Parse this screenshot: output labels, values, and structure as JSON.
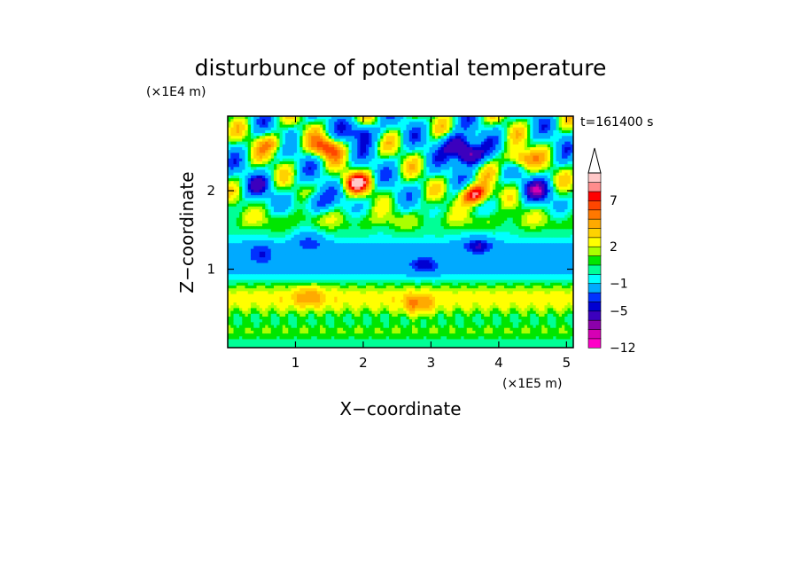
{
  "chart_data": {
    "type": "heatmap",
    "title": "disturbunce of potential temperature",
    "xlabel": "X−coordinate",
    "ylabel": "Z−coordinate",
    "x_unit": "(×1E5 m)",
    "y_unit": "(×1E4 m)",
    "time_label": "t=161400 s",
    "xlim": [
      0,
      5.1
    ],
    "ylim": [
      0,
      2.95
    ],
    "x_ticks": [
      1,
      2,
      3,
      4,
      5
    ],
    "y_ticks": [
      1,
      2
    ],
    "x_tick_labels": [
      "1",
      "2",
      "3",
      "4",
      "5"
    ],
    "y_tick_labels": [
      "1",
      "2"
    ],
    "colorbar": {
      "levels": [
        -12,
        -5,
        -1,
        2,
        7
      ],
      "level_labels": [
        "−12",
        "−5",
        "−1",
        "2",
        "7"
      ],
      "colors": [
        "#ff00c8",
        "#d600b4",
        "#8c00aa",
        "#3c00be",
        "#0000d2",
        "#0032ff",
        "#00aaff",
        "#00ffff",
        "#00ff96",
        "#00e600",
        "#aaff00",
        "#ffff00",
        "#ffd200",
        "#ffaa00",
        "#ff7800",
        "#ff4600",
        "#ff0000",
        "#ff8c8c",
        "#ffc8c8"
      ],
      "extend": "max"
    },
    "field_features": [
      {
        "x": 3.65,
        "z": 1.95,
        "value": 9
      },
      {
        "x": 1.9,
        "z": 2.1,
        "value": 7
      },
      {
        "x": 1.45,
        "z": 2.55,
        "value": 6
      },
      {
        "x": 0.7,
        "z": 2.6,
        "value": 4
      },
      {
        "x": 4.3,
        "z": 2.4,
        "value": 6
      },
      {
        "x": 3.4,
        "z": 2.6,
        "value": -7
      },
      {
        "x": 3.55,
        "z": 2.45,
        "value": -9
      },
      {
        "x": 4.55,
        "z": 2.0,
        "value": -5
      },
      {
        "x": 2.0,
        "z": 2.75,
        "value": -5
      },
      {
        "x": 1.3,
        "z": 1.85,
        "value": -4
      },
      {
        "x": 0.45,
        "z": 2.05,
        "value": -3
      },
      {
        "x": 3.7,
        "z": 1.3,
        "value": -4
      },
      {
        "x": 2.9,
        "z": 1.05,
        "value": -3
      },
      {
        "x": 0.5,
        "z": 1.2,
        "value": -3
      },
      {
        "x": 1.2,
        "z": 1.35,
        "value": -3
      },
      {
        "x": 2.8,
        "z": 0.55,
        "value": 3
      },
      {
        "x": 1.2,
        "z": 0.65,
        "value": 2.5
      }
    ]
  }
}
